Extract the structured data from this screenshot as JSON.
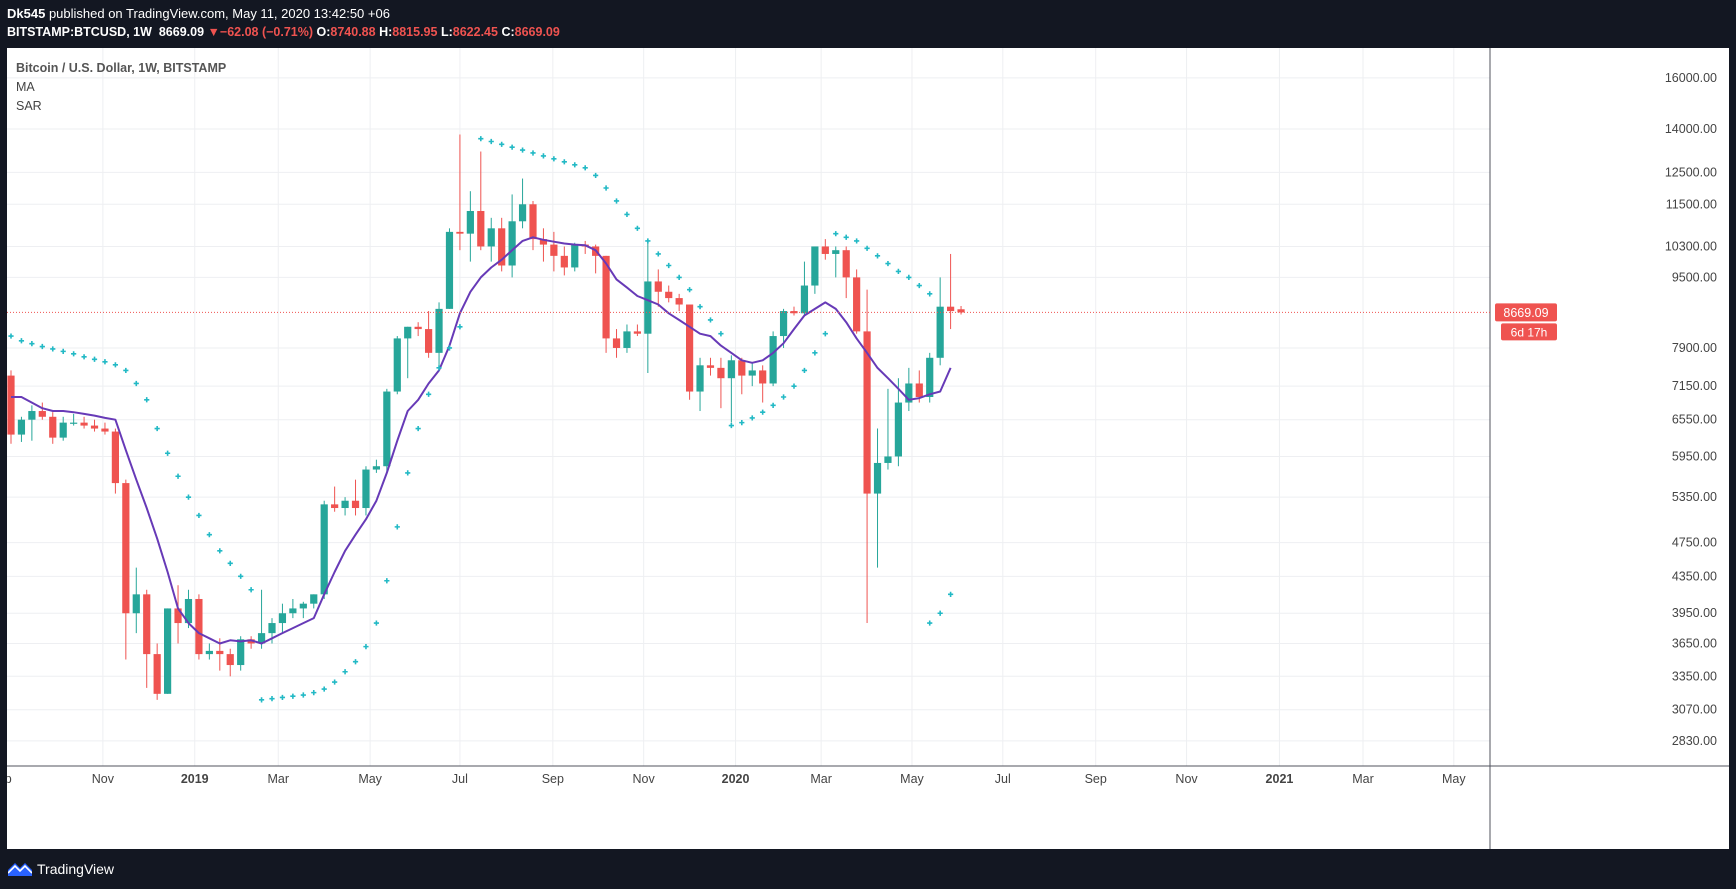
{
  "header": {
    "author": "Dk545",
    "published_text": "published on TradingView.com, May 11, 2020 13:42:50 +06",
    "symbol": "BITSTAMP:BTCUSD, 1W",
    "last": "8669.09",
    "change_arrow": "▼",
    "change": "−62.08 (−0.71%)",
    "o_label": "O:",
    "o": "8740.88",
    "h_label": "H:",
    "h": "8815.95",
    "l_label": "L:",
    "l": "8622.45",
    "c_label": "C:",
    "c": "8669.09"
  },
  "legend": {
    "title": "Bitcoin / U.S. Dollar, 1W, BITSTAMP",
    "ma": "MA",
    "sar": "SAR"
  },
  "footer": {
    "brand": "TradingView"
  },
  "colors": {
    "up": "#26a69a",
    "down": "#ef5350",
    "ma": "#673ab7",
    "sar": "#22b9c5",
    "price_line": "#ef5350"
  },
  "chart_data": {
    "type": "candlestick",
    "title": "Bitcoin / U.S. Dollar, 1W, BITSTAMP",
    "interval": "1W",
    "scale": "log",
    "ylim": [
      2650,
      17300
    ],
    "y_ticks": [
      "16000.00",
      "14000.00",
      "12500.00",
      "11500.00",
      "10300.00",
      "9500.00",
      "7900.00",
      "7150.00",
      "6550.00",
      "5950.00",
      "5350.00",
      "4750.00",
      "4350.00",
      "3950.00",
      "3650.00",
      "3350.00",
      "3070.00",
      "2830.00"
    ],
    "x_tick_labels": [
      {
        "label": "Sep",
        "bold": false,
        "week": -1
      },
      {
        "label": "Nov",
        "bold": false,
        "week": 8.8
      },
      {
        "label": "2019",
        "bold": true,
        "week": 17.6
      },
      {
        "label": "Mar",
        "bold": false,
        "week": 25.6
      },
      {
        "label": "May",
        "bold": false,
        "week": 34.4
      },
      {
        "label": "Jul",
        "bold": false,
        "week": 43.0
      },
      {
        "label": "Sep",
        "bold": false,
        "week": 51.9
      },
      {
        "label": "Nov",
        "bold": false,
        "week": 60.6
      },
      {
        "label": "2020",
        "bold": true,
        "week": 69.4
      },
      {
        "label": "Mar",
        "bold": false,
        "week": 77.6
      },
      {
        "label": "May",
        "bold": false,
        "week": 86.3
      },
      {
        "label": "Jul",
        "bold": false,
        "week": 95.0
      },
      {
        "label": "Sep",
        "bold": false,
        "week": 103.9
      },
      {
        "label": "Nov",
        "bold": false,
        "week": 112.6
      },
      {
        "label": "2021",
        "bold": true,
        "week": 121.5
      },
      {
        "label": "Mar",
        "bold": false,
        "week": 129.5
      },
      {
        "label": "May",
        "bold": false,
        "week": 138.2
      }
    ],
    "last_price_label": "8669.09",
    "countdown_label": "6d 17h",
    "last_price": 8669.09,
    "candles": [
      [
        7350,
        7450,
        6150,
        6300
      ],
      [
        6300,
        6600,
        6180,
        6550
      ],
      [
        6550,
        6800,
        6200,
        6700
      ],
      [
        6700,
        6850,
        6550,
        6600
      ],
      [
        6600,
        6680,
        6150,
        6250
      ],
      [
        6250,
        6600,
        6200,
        6500
      ],
      [
        6500,
        6650,
        6450,
        6500
      ],
      [
        6500,
        6600,
        6400,
        6450
      ],
      [
        6450,
        6550,
        6350,
        6400
      ],
      [
        6400,
        6500,
        6300,
        6350
      ],
      [
        6350,
        6400,
        5400,
        5550
      ],
      [
        5550,
        5600,
        3500,
        3950
      ],
      [
        3950,
        4450,
        3750,
        4150
      ],
      [
        4150,
        4200,
        3250,
        3550
      ],
      [
        3550,
        3650,
        3150,
        3200
      ],
      [
        3200,
        4000,
        3200,
        4000
      ],
      [
        4000,
        4250,
        3650,
        3850
      ],
      [
        3850,
        4200,
        3800,
        4100
      ],
      [
        4100,
        4150,
        3500,
        3550
      ],
      [
        3550,
        3650,
        3500,
        3580
      ],
      [
        3580,
        3700,
        3400,
        3550
      ],
      [
        3550,
        3600,
        3350,
        3450
      ],
      [
        3450,
        3720,
        3400,
        3690
      ],
      [
        3690,
        3720,
        3600,
        3650
      ],
      [
        3650,
        4200,
        3600,
        3750
      ],
      [
        3750,
        3900,
        3650,
        3850
      ],
      [
        3850,
        4050,
        3750,
        3950
      ],
      [
        3950,
        4100,
        3900,
        4000
      ],
      [
        4000,
        4070,
        3900,
        4050
      ],
      [
        4050,
        4150,
        4000,
        4150
      ],
      [
        4150,
        5300,
        4100,
        5250
      ],
      [
        5250,
        5500,
        5150,
        5200
      ],
      [
        5200,
        5350,
        5100,
        5300
      ],
      [
        5300,
        5600,
        5100,
        5200
      ],
      [
        5200,
        5800,
        5100,
        5750
      ],
      [
        5750,
        5900,
        5700,
        5800
      ],
      [
        5800,
        7100,
        5700,
        7050
      ],
      [
        7050,
        8150,
        7000,
        8100
      ],
      [
        8100,
        8350,
        7300,
        8350
      ],
      [
        8350,
        8450,
        8150,
        8300
      ],
      [
        8300,
        8700,
        7700,
        7800
      ],
      [
        7800,
        8900,
        7500,
        8750
      ],
      [
        8750,
        10800,
        8750,
        10700
      ],
      [
        10700,
        13800,
        10200,
        10650
      ],
      [
        10650,
        11900,
        9900,
        11300
      ],
      [
        11300,
        13200,
        10200,
        10300
      ],
      [
        10300,
        11100,
        9900,
        10800
      ],
      [
        10800,
        11100,
        9650,
        9800
      ],
      [
        9800,
        11800,
        9500,
        11000
      ],
      [
        11000,
        12300,
        10800,
        11500
      ],
      [
        11500,
        11600,
        10200,
        10500
      ],
      [
        10500,
        10800,
        9900,
        10350
      ],
      [
        10350,
        10700,
        9650,
        10050
      ],
      [
        10050,
        10300,
        9550,
        9750
      ],
      [
        9750,
        10400,
        9650,
        10350
      ],
      [
        10350,
        10450,
        10100,
        10300
      ],
      [
        10300,
        10350,
        9600,
        10050
      ],
      [
        10050,
        10050,
        7800,
        8100
      ],
      [
        8100,
        8300,
        7700,
        7900
      ],
      [
        7900,
        8400,
        7800,
        8250
      ],
      [
        8250,
        8400,
        8150,
        8200
      ],
      [
        8200,
        10400,
        7400,
        9400
      ],
      [
        9400,
        9700,
        8800,
        9150
      ],
      [
        9150,
        9300,
        8900,
        9000
      ],
      [
        9000,
        9100,
        8700,
        8850
      ],
      [
        8850,
        8850,
        6900,
        7050
      ],
      [
        7050,
        7700,
        6700,
        7550
      ],
      [
        7550,
        7700,
        7350,
        7500
      ],
      [
        7500,
        7700,
        6750,
        7300
      ],
      [
        7300,
        7750,
        6500,
        7650
      ],
      [
        7650,
        7700,
        7000,
        7350
      ],
      [
        7350,
        7600,
        7150,
        7450
      ],
      [
        7450,
        7550,
        6850,
        7200
      ],
      [
        7200,
        8250,
        7150,
        8150
      ],
      [
        8150,
        8750,
        7900,
        8700
      ],
      [
        8700,
        8800,
        8600,
        8650
      ],
      [
        8650,
        9900,
        8600,
        9300
      ],
      [
        9300,
        10200,
        9100,
        10300
      ],
      [
        10300,
        10500,
        9950,
        10100
      ],
      [
        10100,
        10300,
        9500,
        10200
      ],
      [
        10200,
        10300,
        9000,
        9500
      ],
      [
        9500,
        9700,
        8200,
        8250
      ],
      [
        8250,
        9200,
        3850,
        5400
      ],
      [
        5400,
        6400,
        4450,
        5850
      ],
      [
        5850,
        7100,
        5750,
        5950
      ],
      [
        5950,
        7300,
        5800,
        6850
      ],
      [
        6850,
        7500,
        6700,
        7200
      ],
      [
        7200,
        7450,
        6850,
        6950
      ],
      [
        6950,
        7800,
        6850,
        7700
      ],
      [
        7700,
        9500,
        7550,
        8800
      ],
      [
        8800,
        10100,
        8300,
        8700
      ],
      [
        8740.88,
        8815.95,
        8622.45,
        8669.09
      ]
    ],
    "ma": [
      6950,
      6950,
      6850,
      6750,
      6700,
      6700,
      6680,
      6650,
      6620,
      6580,
      6550,
      6050,
      5600,
      5200,
      4800,
      4400,
      4000,
      3850,
      3750,
      3700,
      3650,
      3680,
      3670,
      3680,
      3650,
      3700,
      3750,
      3800,
      3850,
      3900,
      4150,
      4400,
      4650,
      4850,
      5050,
      5300,
      5700,
      6200,
      6700,
      6900,
      7200,
      7450,
      7950,
      8650,
      9150,
      9500,
      9750,
      9950,
      10200,
      10450,
      10550,
      10480,
      10430,
      10380,
      10350,
      10330,
      10200,
      9850,
      9450,
      9250,
      9050,
      8950,
      8850,
      8650,
      8500,
      8350,
      8200,
      8150,
      7950,
      7800,
      7650,
      7600,
      7650,
      7800,
      8000,
      8300,
      8600,
      8750,
      8900,
      8750,
      8450,
      8100,
      7800,
      7500,
      7300,
      7100,
      6900,
      6930,
      7000,
      7050,
      7500
    ],
    "sar": [
      {
        "w": 0,
        "v": 8150
      },
      {
        "w": 1,
        "v": 8050
      },
      {
        "w": 2,
        "v": 7990
      },
      {
        "w": 3,
        "v": 7930
      },
      {
        "w": 4,
        "v": 7880
      },
      {
        "w": 5,
        "v": 7830
      },
      {
        "w": 6,
        "v": 7780
      },
      {
        "w": 7,
        "v": 7720
      },
      {
        "w": 8,
        "v": 7670
      },
      {
        "w": 9,
        "v": 7620
      },
      {
        "w": 10,
        "v": 7560
      },
      {
        "w": 11,
        "v": 7450
      },
      {
        "w": 12,
        "v": 7200
      },
      {
        "w": 13,
        "v": 6900
      },
      {
        "w": 14,
        "v": 6400
      },
      {
        "w": 15,
        "v": 6000
      },
      {
        "w": 16,
        "v": 5650
      },
      {
        "w": 17,
        "v": 5350
      },
      {
        "w": 18,
        "v": 5100
      },
      {
        "w": 19,
        "v": 4850
      },
      {
        "w": 20,
        "v": 4650
      },
      {
        "w": 21,
        "v": 4500
      },
      {
        "w": 22,
        "v": 4350
      },
      {
        "w": 23,
        "v": 4200
      },
      {
        "w": 24,
        "v": 3150
      },
      {
        "w": 25,
        "v": 3160
      },
      {
        "w": 26,
        "v": 3170
      },
      {
        "w": 27,
        "v": 3180
      },
      {
        "w": 28,
        "v": 3190
      },
      {
        "w": 29,
        "v": 3210
      },
      {
        "w": 30,
        "v": 3240
      },
      {
        "w": 31,
        "v": 3300
      },
      {
        "w": 32,
        "v": 3390
      },
      {
        "w": 33,
        "v": 3480
      },
      {
        "w": 34,
        "v": 3620
      },
      {
        "w": 35,
        "v": 3850
      },
      {
        "w": 36,
        "v": 4300
      },
      {
        "w": 37,
        "v": 4950
      },
      {
        "w": 38,
        "v": 5700
      },
      {
        "w": 39,
        "v": 6400
      },
      {
        "w": 40,
        "v": 7000
      },
      {
        "w": 41,
        "v": 7500
      },
      {
        "w": 42,
        "v": 7900
      },
      {
        "w": 43,
        "v": 8350
      },
      {
        "w": 45,
        "v": 13650
      },
      {
        "w": 46,
        "v": 13550
      },
      {
        "w": 47,
        "v": 13450
      },
      {
        "w": 48,
        "v": 13350
      },
      {
        "w": 49,
        "v": 13250
      },
      {
        "w": 50,
        "v": 13150
      },
      {
        "w": 51,
        "v": 13050
      },
      {
        "w": 52,
        "v": 12950
      },
      {
        "w": 53,
        "v": 12850
      },
      {
        "w": 54,
        "v": 12750
      },
      {
        "w": 55,
        "v": 12650
      },
      {
        "w": 56,
        "v": 12400
      },
      {
        "w": 57,
        "v": 12000
      },
      {
        "w": 58,
        "v": 11600
      },
      {
        "w": 59,
        "v": 11200
      },
      {
        "w": 60,
        "v": 10800
      },
      {
        "w": 61,
        "v": 10450
      },
      {
        "w": 62,
        "v": 10100
      },
      {
        "w": 63,
        "v": 9800
      },
      {
        "w": 64,
        "v": 9500
      },
      {
        "w": 65,
        "v": 9200
      },
      {
        "w": 66,
        "v": 8800
      },
      {
        "w": 67,
        "v": 8500
      },
      {
        "w": 68,
        "v": 8200
      },
      {
        "w": 69,
        "v": 6450
      },
      {
        "w": 70,
        "v": 6500
      },
      {
        "w": 71,
        "v": 6580
      },
      {
        "w": 72,
        "v": 6680
      },
      {
        "w": 73,
        "v": 6800
      },
      {
        "w": 74,
        "v": 6950
      },
      {
        "w": 75,
        "v": 7150
      },
      {
        "w": 76,
        "v": 7450
      },
      {
        "w": 77,
        "v": 7800
      },
      {
        "w": 78,
        "v": 8200
      },
      {
        "w": 79,
        "v": 10650
      },
      {
        "w": 80,
        "v": 10550
      },
      {
        "w": 81,
        "v": 10450
      },
      {
        "w": 82,
        "v": 10250
      },
      {
        "w": 83,
        "v": 10050
      },
      {
        "w": 84,
        "v": 9850
      },
      {
        "w": 85,
        "v": 9650
      },
      {
        "w": 86,
        "v": 9500
      },
      {
        "w": 87,
        "v": 9300
      },
      {
        "w": 88,
        "v": 9100
      },
      {
        "w": 88,
        "v": 3850
      },
      {
        "w": 89,
        "v": 3950
      },
      {
        "w": 90,
        "v": 4150
      }
    ]
  }
}
